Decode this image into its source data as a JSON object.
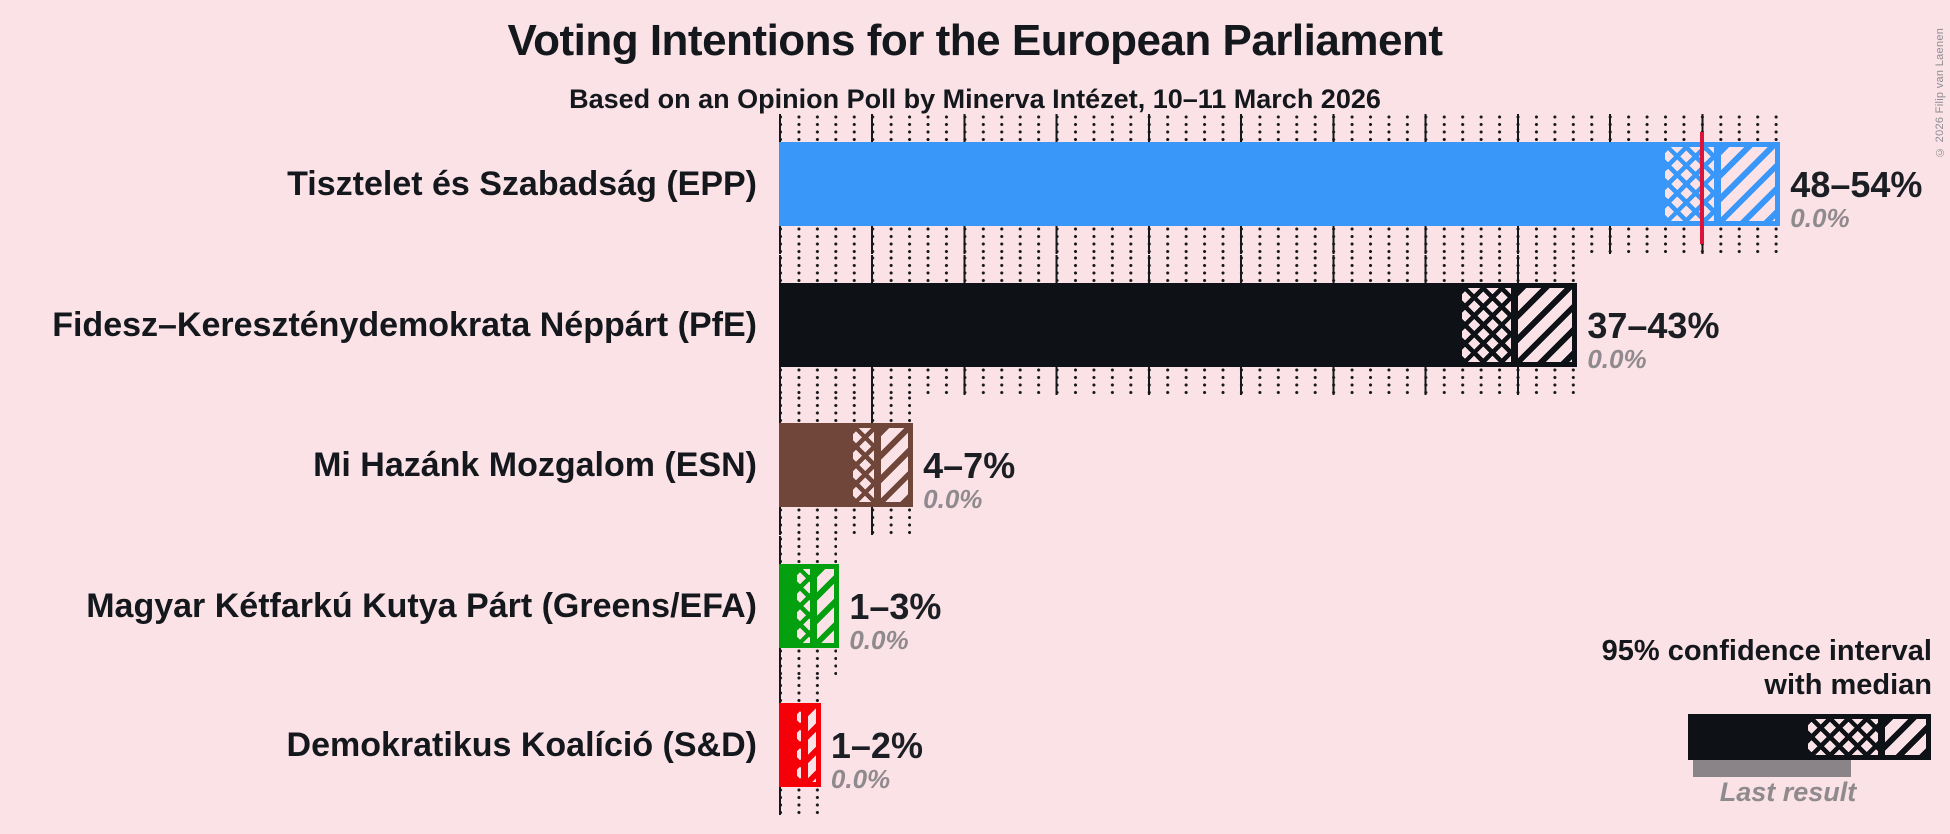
{
  "title": "Voting Intentions for the European Parliament",
  "subtitle": "Based on an Opinion Poll by Minerva Intézet, 10–11 March 2026",
  "copyright": "© 2026 Filip van Laenen",
  "legend": {
    "ci_label": "95% confidence interval",
    "ci_label_line2": "with median",
    "last_result_label": "Last result"
  },
  "colors": {
    "background": "#fbe2e7",
    "majority_line": "#dc143c",
    "grid": "#15181b",
    "text": "#14181c",
    "muted_text": "#8f8a8d",
    "last_result_bar": "#8a8387"
  },
  "chart_data": {
    "type": "bar",
    "title": "Voting Intentions for the European Parliament",
    "subtitle": "Based on an Opinion Poll by Minerva Intézet, 10–11 March 2026",
    "unit": "percent of votes",
    "x_axis": {
      "min": 0,
      "max": 55,
      "minor_tick_step": 1,
      "major_tick_step": 5,
      "labels_shown": false
    },
    "majority_line_percent": 50,
    "legend_note": "95% confidence interval with median; gray underlay = last result",
    "parties": [
      {
        "label": "Tisztelet és Szabadság (EPP)",
        "ci_low": 48,
        "median": 51,
        "ci_high": 54,
        "range_label": "48–54%",
        "last_result": 0.0,
        "last_result_label": "0.0%",
        "color": "#3a97fa"
      },
      {
        "label": "Fidesz–Kereszténydemokrata Néppárt (PfE)",
        "ci_low": 37,
        "median": 40,
        "ci_high": 43,
        "range_label": "37–43%",
        "last_result": 0.0,
        "last_result_label": "0.0%",
        "color": "#0e1216"
      },
      {
        "label": "Mi Hazánk Mozgalom (ESN)",
        "ci_low": 4,
        "median": 5.5,
        "ci_high": 7,
        "range_label": "4–7%",
        "last_result": 0.0,
        "last_result_label": "0.0%",
        "color": "#6f4639"
      },
      {
        "label": "Magyar Kétfarkú Kutya Párt (Greens/EFA)",
        "ci_low": 1,
        "median": 2,
        "ci_high": 3,
        "range_label": "1–3%",
        "last_result": 0.0,
        "last_result_label": "0.0%",
        "color": "#04a00f"
      },
      {
        "label": "Demokratikus Koalíció (S&D)",
        "ci_low": 1,
        "median": 1.5,
        "ci_high": 2,
        "range_label": "1–2%",
        "last_result": 0.0,
        "last_result_label": "0.0%",
        "color": "#f50008"
      }
    ]
  }
}
